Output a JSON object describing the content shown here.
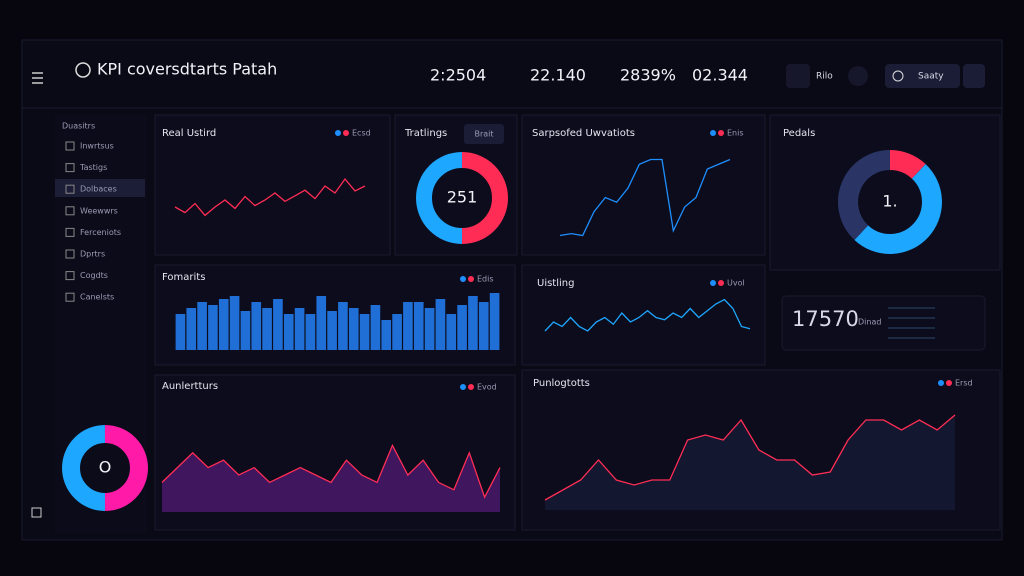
{
  "header": {
    "title": "KPI coversdtarts Patah",
    "kpis": [
      "2:2504",
      "22.140",
      "2839%",
      "02.344"
    ],
    "buttons": [
      "Rilo",
      "Saaty"
    ]
  },
  "sidebar": {
    "section": "Duasitrs",
    "items": [
      "Inwrtsus",
      "Tastigs",
      "Dolbaces",
      "Weewwrs",
      "Ferceniots",
      "Dprtrs",
      "Cogdts",
      "Canelsts"
    ]
  },
  "chart_data": [
    {
      "type": "line",
      "title": "Real Ustird",
      "legend": "Ecsd",
      "color": "#ff2d55",
      "ylim": [
        0,
        10
      ],
      "values": [
        4,
        3.2,
        4.5,
        2.8,
        4,
        5,
        3.8,
        5.5,
        4.2,
        5,
        6,
        4.8,
        5.6,
        6.4,
        5.2,
        7,
        6,
        8,
        6.3,
        7
      ]
    },
    {
      "type": "donut",
      "title": "Tratlings",
      "button": "Brait",
      "center": "251",
      "values": [
        50,
        50
      ],
      "colors": [
        "#ff2d55",
        "#1ea7ff"
      ]
    },
    {
      "type": "line",
      "title": "Sarpsofed Uwvatiots",
      "legend": "Enis",
      "color": "#1e8fff",
      "ylim": [
        0,
        10
      ],
      "values": [
        1,
        1.2,
        1,
        3.5,
        5,
        4.5,
        6,
        8.5,
        9,
        9,
        1.5,
        4,
        5,
        8,
        8.5,
        9
      ]
    },
    {
      "type": "donut",
      "title": "Pedals",
      "center": "1.",
      "values": [
        12,
        50,
        38
      ],
      "colors": [
        "#ff2d55",
        "#1ea7ff",
        "#2a3566"
      ]
    },
    {
      "type": "bar",
      "title": "Fomarits",
      "legend": "Edis",
      "color": "#1f6fd6",
      "ylim": [
        0,
        10
      ],
      "values": [
        6,
        7,
        8,
        7.5,
        8.5,
        9,
        6.5,
        8,
        7,
        8.5,
        6,
        7,
        6,
        9,
        6.5,
        8,
        7,
        6,
        7.5,
        5,
        6,
        8,
        8,
        7,
        8.5,
        6,
        7.5,
        9,
        8,
        9.5
      ]
    },
    {
      "type": "line",
      "title": "Uistling",
      "legend": "Uvol",
      "color": "#1ea7ff",
      "ylim": [
        0,
        10
      ],
      "values": [
        2,
        4,
        3,
        5,
        3,
        2,
        4,
        5,
        3.5,
        6,
        4,
        5,
        6.5,
        5,
        4.5,
        6,
        5,
        7,
        5,
        6.5,
        8,
        9,
        7,
        3,
        2.5
      ]
    },
    {
      "type": "stat",
      "value": 17570,
      "label": "Dinad"
    },
    {
      "type": "area",
      "title": "Aunlertturs",
      "legend": "Evod",
      "color": "#ff2d55",
      "fill": "#4a1a6a",
      "ylim": [
        0,
        10
      ],
      "values": [
        4,
        6,
        8,
        6,
        7,
        5,
        6,
        4,
        5,
        6,
        5,
        4,
        7,
        5,
        4,
        9,
        5,
        7,
        4,
        3,
        8,
        2,
        6
      ]
    },
    {
      "type": "area",
      "title": "Punlogtotts",
      "legend": "Ersd",
      "color": "#ff2d55",
      "fill": "#151a33",
      "ylim": [
        0,
        10
      ],
      "values": [
        1,
        2,
        3,
        5,
        3,
        2.5,
        3,
        3,
        7,
        7.5,
        7,
        9,
        6,
        5,
        5,
        3.5,
        3.8,
        7,
        9,
        9,
        8,
        9,
        8,
        9.5
      ]
    },
    {
      "type": "donut",
      "center": "O",
      "values": [
        50,
        50
      ],
      "colors": [
        "#ff1aa8",
        "#1ea7ff"
      ]
    }
  ]
}
